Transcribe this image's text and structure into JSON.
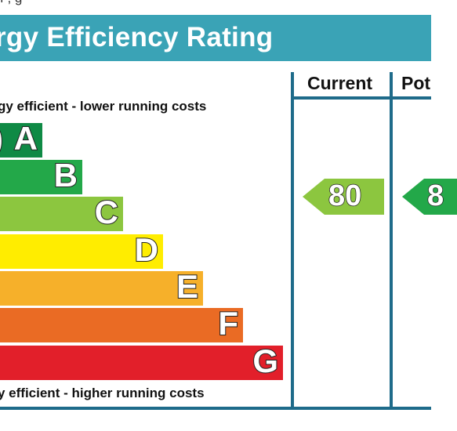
{
  "header": {
    "top_text": "f                                                   ,                                    g",
    "title": "rgy Efficiency Rating"
  },
  "columns": {
    "current": "Current",
    "potential": "Pot"
  },
  "captions": {
    "top": "gy efficient - lower running costs",
    "bottom": "y efficient - higher running costs"
  },
  "chart_data": {
    "type": "bar",
    "categories": [
      "A",
      "B",
      "C",
      "D",
      "E",
      "F",
      "G"
    ],
    "band_ranges": [
      ")",
      "",
      "",
      "",
      "",
      "",
      ""
    ],
    "colors": {
      "A": "#0f8a45",
      "B": "#23a849",
      "C": "#8cc63f",
      "D": "#ffed00",
      "E": "#f6b02a",
      "F": "#ea6b24",
      "G": "#e21f2a",
      "current": "#8cc63f",
      "potential": "#23a849"
    },
    "current": 80,
    "potential": "8"
  }
}
